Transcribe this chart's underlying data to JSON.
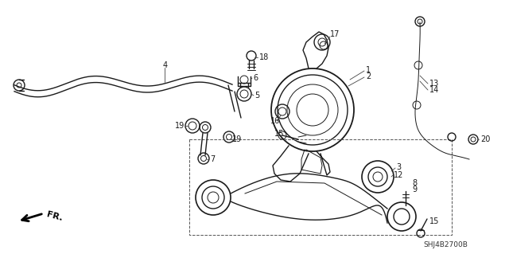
{
  "diagram_code": "SHJ4B2700B",
  "bg_color": "#ffffff",
  "line_color": "#1a1a1a",
  "fig_width": 6.4,
  "fig_height": 3.19,
  "dpi": 100
}
